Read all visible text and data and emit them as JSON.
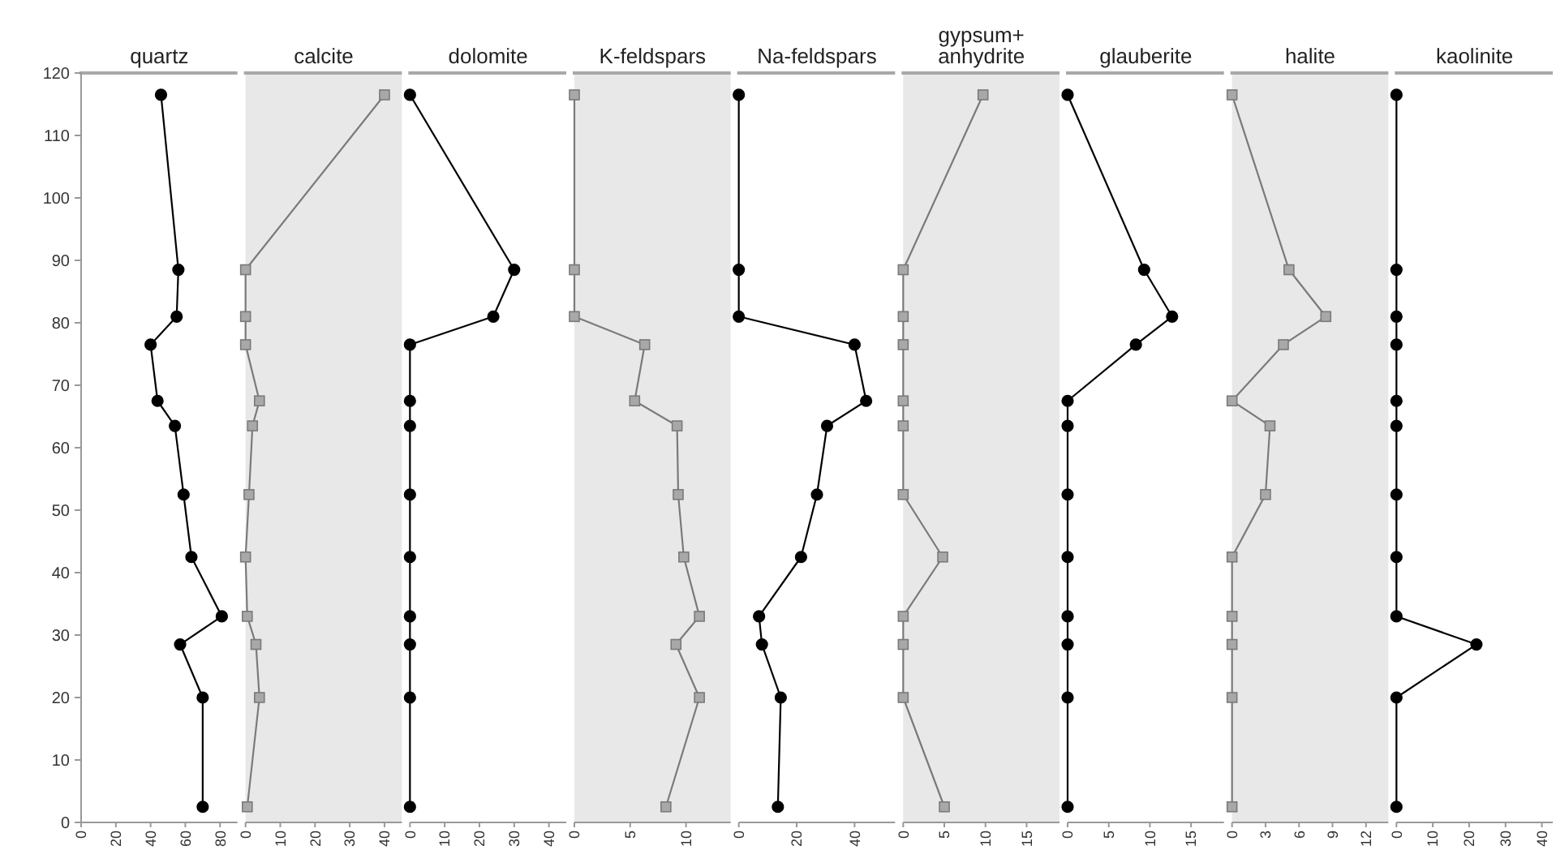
{
  "chart_data": [
    {
      "type": "line",
      "title": "quartz",
      "x": [
        46,
        56,
        55,
        40,
        44,
        54,
        59,
        63.5,
        81,
        57,
        70,
        70
      ],
      "series": [
        {
          "color": "#000000",
          "values": [
            116.5,
            88.5,
            81,
            76.5,
            67.5,
            63.5,
            52.5,
            42.5,
            33,
            28.5,
            20,
            2.5
          ]
        }
      ],
      "marker": "circle",
      "xlim": [
        0,
        90
      ],
      "xticks": [
        0,
        20,
        40,
        60,
        80
      ],
      "ylim": [
        0,
        120
      ],
      "yticks": [
        0,
        10,
        20,
        30,
        40,
        50,
        60,
        70,
        80,
        90,
        100,
        110,
        120
      ]
    },
    {
      "type": "line",
      "title": "calcite",
      "x": [
        40,
        0,
        0,
        0,
        4,
        2,
        1,
        0,
        0.5,
        3,
        4,
        0.5
      ],
      "series": [
        {
          "color": "#7a7a7a",
          "values": [
            116.5,
            88.5,
            81,
            76.5,
            67.5,
            63.5,
            52.5,
            42.5,
            33,
            28.5,
            20,
            2.5
          ]
        }
      ],
      "marker": "square",
      "xlim": [
        0,
        45
      ],
      "xticks": [
        0,
        10,
        20,
        30,
        40
      ],
      "ylim": [
        0,
        120
      ],
      "tick_labels": "x"
    },
    {
      "type": "line",
      "title": "dolomite",
      "x": [
        0,
        30,
        24,
        0,
        0,
        0,
        0,
        0,
        0,
        0,
        0,
        0
      ],
      "series": [
        {
          "color": "#000000",
          "values": [
            116.5,
            88.5,
            81,
            76.5,
            67.5,
            63.5,
            52.5,
            42.5,
            33,
            28.5,
            20,
            2.5
          ]
        }
      ],
      "marker": "circle",
      "xlim": [
        0,
        45
      ],
      "xticks": [
        0,
        10,
        20,
        30,
        40
      ],
      "ylim": [
        0,
        120
      ],
      "tick_labels": "x"
    },
    {
      "type": "line",
      "title": "K-feldspars",
      "x": [
        0,
        0,
        0,
        6.3,
        5.4,
        9.2,
        9.3,
        9.8,
        11.2,
        9.1,
        11.2,
        8.2
      ],
      "series": [
        {
          "color": "#7a7a7a",
          "values": [
            116.5,
            88.5,
            81,
            76.5,
            67.5,
            63.5,
            52.5,
            42.5,
            33,
            28.5,
            20,
            2.5
          ]
        }
      ],
      "marker": "square",
      "xlim": [
        0,
        14
      ],
      "xticks": [
        0,
        5,
        10
      ],
      "ylim": [
        0,
        120
      ],
      "tick_labels": "x"
    },
    {
      "type": "line",
      "title": "Na-feldspars",
      "x": [
        0,
        0,
        0,
        40,
        44,
        30.5,
        27,
        21.5,
        7,
        8,
        14.5,
        13.5
      ],
      "series": [
        {
          "color": "#000000",
          "values": [
            116.5,
            88.5,
            81,
            76.5,
            67.5,
            63.5,
            52.5,
            42.5,
            33,
            28.5,
            20,
            2.5
          ]
        }
      ],
      "marker": "circle",
      "xlim": [
        0,
        54
      ],
      "xticks": [
        0,
        20,
        40
      ],
      "ylim": [
        0,
        120
      ],
      "tick_labels": "x"
    },
    {
      "type": "line",
      "title": "gypsum+\nanhydrite",
      "x": [
        9.7,
        0,
        0,
        0,
        0,
        0,
        0,
        4.8,
        0,
        0,
        0,
        5
      ],
      "series": [
        {
          "color": "#7a7a7a",
          "values": [
            116.5,
            88.5,
            81,
            76.5,
            67.5,
            63.5,
            52.5,
            42.5,
            33,
            28.5,
            20,
            2.5
          ]
        }
      ],
      "marker": "square",
      "xlim": [
        0,
        19
      ],
      "xticks": [
        0,
        5,
        10,
        15
      ],
      "ylim": [
        0,
        120
      ],
      "tick_labels": "x"
    },
    {
      "type": "line",
      "title": "glauberite",
      "x": [
        0,
        9.3,
        12.7,
        8.3,
        0,
        0,
        0,
        0,
        0,
        0,
        0,
        0
      ],
      "series": [
        {
          "color": "#000000",
          "values": [
            116.5,
            88.5,
            81,
            76.5,
            67.5,
            63.5,
            52.5,
            42.5,
            33,
            28.5,
            20,
            2.5
          ]
        }
      ],
      "marker": "circle",
      "xlim": [
        0,
        19
      ],
      "xticks": [
        0,
        5,
        10,
        15
      ],
      "ylim": [
        0,
        120
      ],
      "tick_labels": "x"
    },
    {
      "type": "line",
      "title": "halite",
      "x": [
        0,
        5.1,
        8.4,
        4.6,
        0,
        3.4,
        3,
        0,
        0,
        0,
        0,
        0
      ],
      "series": [
        {
          "color": "#7a7a7a",
          "values": [
            116.5,
            88.5,
            81,
            76.5,
            67.5,
            63.5,
            52.5,
            42.5,
            33,
            28.5,
            20,
            2.5
          ]
        }
      ],
      "marker": "square",
      "xlim": [
        0,
        14
      ],
      "xticks": [
        0,
        3,
        6,
        9,
        12
      ],
      "ylim": [
        0,
        120
      ],
      "tick_labels": "x"
    },
    {
      "type": "line",
      "title": "kaolinite",
      "x": [
        0,
        0,
        0,
        0,
        0,
        0,
        0,
        0,
        0,
        22,
        0,
        0
      ],
      "series": [
        {
          "color": "#000000",
          "values": [
            116.5,
            88.5,
            81,
            76.5,
            67.5,
            63.5,
            52.5,
            42.5,
            33,
            28.5,
            20,
            2.5
          ]
        }
      ],
      "marker": "circle",
      "xlim": [
        0,
        43
      ],
      "xticks": [
        0,
        10,
        20,
        30,
        40
      ],
      "ylim": [
        0,
        120
      ],
      "tick_labels": "x"
    }
  ]
}
